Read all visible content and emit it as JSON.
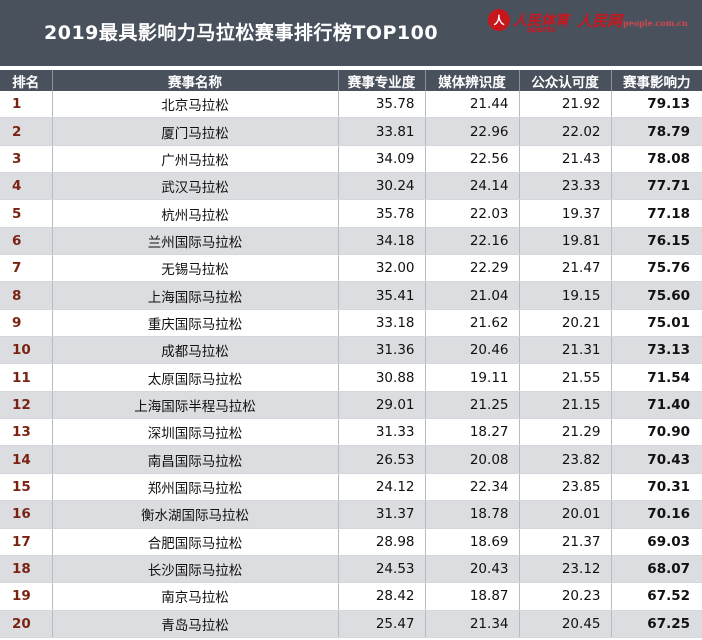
{
  "header": {
    "title": "2019最具影响力马拉松赛事排行榜TOP100",
    "logo1_mark": "人",
    "logo1_text": "人民体育",
    "logo1_sub": "sports",
    "logo2_text": "人民网",
    "logo2_sub": "people.com.cn"
  },
  "table": {
    "columns": [
      "排名",
      "赛事名称",
      "赛事专业度",
      "媒体辨识度",
      "公众认可度",
      "赛事影响力"
    ],
    "rows": [
      {
        "rank": "1",
        "name": "北京马拉松",
        "pro": "35.78",
        "media": "21.44",
        "public": "21.92",
        "impact": "79.13"
      },
      {
        "rank": "2",
        "name": "厦门马拉松",
        "pro": "33.81",
        "media": "22.96",
        "public": "22.02",
        "impact": "78.79"
      },
      {
        "rank": "3",
        "name": "广州马拉松",
        "pro": "34.09",
        "media": "22.56",
        "public": "21.43",
        "impact": "78.08"
      },
      {
        "rank": "4",
        "name": "武汉马拉松",
        "pro": "30.24",
        "media": "24.14",
        "public": "23.33",
        "impact": "77.71"
      },
      {
        "rank": "5",
        "name": "杭州马拉松",
        "pro": "35.78",
        "media": "22.03",
        "public": "19.37",
        "impact": "77.18"
      },
      {
        "rank": "6",
        "name": "兰州国际马拉松",
        "pro": "34.18",
        "media": "22.16",
        "public": "19.81",
        "impact": "76.15"
      },
      {
        "rank": "7",
        "name": "无锡马拉松",
        "pro": "32.00",
        "media": "22.29",
        "public": "21.47",
        "impact": "75.76"
      },
      {
        "rank": "8",
        "name": "上海国际马拉松",
        "pro": "35.41",
        "media": "21.04",
        "public": "19.15",
        "impact": "75.60"
      },
      {
        "rank": "9",
        "name": "重庆国际马拉松",
        "pro": "33.18",
        "media": "21.62",
        "public": "20.21",
        "impact": "75.01"
      },
      {
        "rank": "10",
        "name": "成都马拉松",
        "pro": "31.36",
        "media": "20.46",
        "public": "21.31",
        "impact": "73.13"
      },
      {
        "rank": "11",
        "name": "太原国际马拉松",
        "pro": "30.88",
        "media": "19.11",
        "public": "21.55",
        "impact": "71.54"
      },
      {
        "rank": "12",
        "name": "上海国际半程马拉松",
        "pro": "29.01",
        "media": "21.25",
        "public": "21.15",
        "impact": "71.40"
      },
      {
        "rank": "13",
        "name": "深圳国际马拉松",
        "pro": "31.33",
        "media": "18.27",
        "public": "21.29",
        "impact": "70.90"
      },
      {
        "rank": "14",
        "name": "南昌国际马拉松",
        "pro": "26.53",
        "media": "20.08",
        "public": "23.82",
        "impact": "70.43"
      },
      {
        "rank": "15",
        "name": "郑州国际马拉松",
        "pro": "24.12",
        "media": "22.34",
        "public": "23.85",
        "impact": "70.31"
      },
      {
        "rank": "16",
        "name": "衡水湖国际马拉松",
        "pro": "31.37",
        "media": "18.78",
        "public": "20.01",
        "impact": "70.16"
      },
      {
        "rank": "17",
        "name": "合肥国际马拉松",
        "pro": "28.98",
        "media": "18.69",
        "public": "21.37",
        "impact": "69.03"
      },
      {
        "rank": "18",
        "name": "长沙国际马拉松",
        "pro": "24.53",
        "media": "20.43",
        "public": "23.12",
        "impact": "68.07"
      },
      {
        "rank": "19",
        "name": "南京马拉松",
        "pro": "28.42",
        "media": "18.87",
        "public": "20.23",
        "impact": "67.52"
      },
      {
        "rank": "20",
        "name": "青岛马拉松",
        "pro": "25.47",
        "media": "21.34",
        "public": "20.45",
        "impact": "67.25"
      }
    ]
  },
  "colors": {
    "header_bg": "#49515d",
    "rank_text": "#7b2313",
    "row_alt_bg": "#dcdde1",
    "logo_red": "#c8161d"
  }
}
